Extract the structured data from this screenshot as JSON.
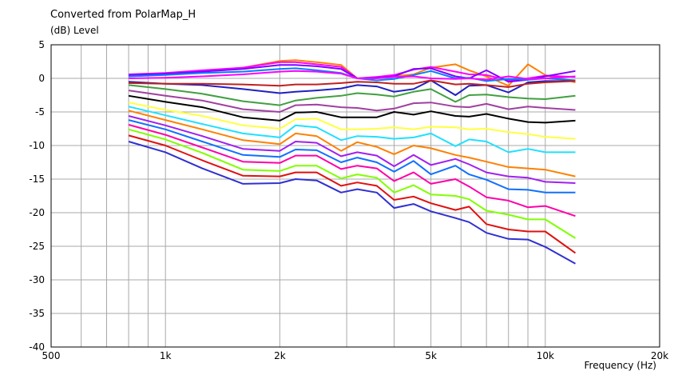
{
  "chart_data": {
    "type": "line",
    "title": "Converted from PolarMap_H",
    "ylabel": "(dB)  Level",
    "xlabel": "Frequency  (Hz)",
    "x_scale": "log",
    "xlim": [
      500,
      20000
    ],
    "ylim": [
      -40,
      5
    ],
    "grid": true,
    "x_tick_labels": [
      {
        "value": 500,
        "label": "500"
      },
      {
        "value": 1000,
        "label": "1k"
      },
      {
        "value": 2000,
        "label": "2k"
      },
      {
        "value": 5000,
        "label": "5k"
      },
      {
        "value": 10000,
        "label": "10k"
      },
      {
        "value": 20000,
        "label": "20k"
      }
    ],
    "y_tick_labels": [
      "5",
      "0",
      "-5",
      "-10",
      "-15",
      "-20",
      "-25",
      "-30",
      "-35",
      "-40"
    ],
    "x": [
      800,
      1000,
      1250,
      1600,
      2000,
      2200,
      2500,
      2900,
      3200,
      3600,
      4000,
      4500,
      5000,
      5800,
      6300,
      7000,
      8000,
      9000,
      10000,
      12000
    ],
    "series": [
      {
        "color": "#ff8000",
        "values": [
          0.3,
          0.6,
          1.0,
          1.6,
          2.6,
          2.7,
          2.4,
          2.0,
          0.0,
          0.2,
          0.3,
          0.6,
          1.6,
          2.1,
          1.2,
          0.3,
          -1.1,
          2.1,
          0.5,
          -0.6
        ]
      },
      {
        "color": "#ff00ff",
        "values": [
          0.6,
          0.8,
          1.2,
          1.6,
          2.4,
          2.4,
          2.1,
          1.7,
          0.0,
          0.2,
          0.5,
          1.3,
          1.7,
          1.0,
          0.6,
          0.5,
          -0.3,
          0.0,
          0.4,
          0.2
        ]
      },
      {
        "color": "#8000ff",
        "values": [
          0.5,
          0.7,
          1.0,
          1.4,
          2.0,
          2.0,
          1.8,
          1.4,
          0.0,
          0.1,
          0.3,
          1.4,
          1.5,
          0.3,
          0.0,
          1.2,
          -0.5,
          -0.2,
          0.3,
          1.1
        ]
      },
      {
        "color": "#0080ff",
        "values": [
          0.3,
          0.5,
          0.8,
          1.0,
          1.4,
          1.5,
          1.2,
          0.8,
          0.0,
          -0.3,
          -0.1,
          0.5,
          1.1,
          0.0,
          0.1,
          -0.4,
          -0.1,
          -0.2,
          0.0,
          -0.3
        ]
      },
      {
        "color": "#ff00ff",
        "values": [
          0.0,
          0.1,
          0.3,
          0.6,
          1.0,
          1.1,
          1.0,
          0.7,
          0.0,
          0.0,
          0.2,
          0.3,
          0.0,
          -0.1,
          0.0,
          -0.2,
          0.3,
          -0.1,
          0.0,
          0.3
        ]
      },
      {
        "color": "#2020c0",
        "values": [
          -0.5,
          -0.8,
          -1.0,
          -1.6,
          -2.2,
          -2.0,
          -1.8,
          -1.5,
          -1.0,
          -1.2,
          -2.0,
          -1.6,
          -0.3,
          -2.5,
          -1.1,
          -1.0,
          -2.1,
          -0.6,
          -0.4,
          -0.4
        ]
      },
      {
        "color": "#c02020",
        "values": [
          -0.7,
          -0.8,
          -0.8,
          -0.9,
          -1.1,
          -0.9,
          -0.9,
          -0.7,
          -0.5,
          -0.6,
          -0.8,
          -0.8,
          -0.3,
          -0.9,
          -0.8,
          -1.0,
          -1.3,
          -0.8,
          -0.6,
          -0.4
        ]
      },
      {
        "color": "#40a040",
        "values": [
          -1.0,
          -1.6,
          -2.3,
          -3.4,
          -4.0,
          -3.3,
          -2.9,
          -2.6,
          -2.2,
          -2.4,
          -2.7,
          -2.0,
          -1.6,
          -3.5,
          -2.5,
          -2.4,
          -2.8,
          -3.0,
          -3.1,
          -2.6
        ]
      },
      {
        "color": "#a040a0",
        "values": [
          -1.8,
          -2.6,
          -3.3,
          -4.6,
          -5.0,
          -4.0,
          -3.9,
          -4.3,
          -4.4,
          -4.8,
          -4.5,
          -3.7,
          -3.6,
          -4.2,
          -4.3,
          -3.8,
          -4.6,
          -4.2,
          -4.4,
          -4.7
        ]
      },
      {
        "color": "#000000",
        "values": [
          -2.6,
          -3.5,
          -4.3,
          -5.8,
          -6.3,
          -5.1,
          -5.0,
          -5.8,
          -5.8,
          -5.8,
          -5.0,
          -5.4,
          -4.9,
          -5.6,
          -5.7,
          -5.3,
          -6.0,
          -6.5,
          -6.6,
          -6.3
        ]
      },
      {
        "color": "#ffff40",
        "values": [
          -3.6,
          -4.7,
          -5.6,
          -7.0,
          -7.5,
          -6.1,
          -6.0,
          -7.6,
          -7.6,
          -7.5,
          -7.3,
          -7.6,
          -7.2,
          -7.3,
          -7.6,
          -7.5,
          -8.0,
          -8.3,
          -8.7,
          -9.0
        ]
      },
      {
        "color": "#20e0ff",
        "values": [
          -4.2,
          -5.5,
          -6.8,
          -8.2,
          -8.8,
          -7.0,
          -7.3,
          -9.2,
          -8.6,
          -8.7,
          -9.0,
          -8.8,
          -8.2,
          -10.1,
          -9.1,
          -9.4,
          -11.0,
          -10.5,
          -11.0,
          -11.0
        ]
      },
      {
        "color": "#ff8000",
        "values": [
          -4.8,
          -6.2,
          -7.6,
          -9.2,
          -9.8,
          -8.2,
          -8.6,
          -10.8,
          -9.5,
          -10.2,
          -11.3,
          -10.0,
          -10.4,
          -11.4,
          -11.8,
          -12.4,
          -13.2,
          -13.4,
          -13.6,
          -14.6
        ]
      },
      {
        "color": "#a020f0",
        "values": [
          -5.6,
          -7.0,
          -8.6,
          -10.5,
          -10.8,
          -9.4,
          -9.6,
          -11.6,
          -11.0,
          -11.5,
          -13.1,
          -11.4,
          -12.9,
          -12.0,
          -12.8,
          -14.0,
          -14.6,
          -14.8,
          -15.4,
          -15.6
        ]
      },
      {
        "color": "#1070ff",
        "values": [
          -6.2,
          -7.6,
          -9.4,
          -11.4,
          -11.7,
          -10.6,
          -10.7,
          -12.5,
          -11.8,
          -12.5,
          -13.9,
          -12.3,
          -14.3,
          -13.0,
          -14.3,
          -15.1,
          -16.5,
          -16.6,
          -17.0,
          -17.0
        ]
      },
      {
        "color": "#ff00aa",
        "values": [
          -6.9,
          -8.4,
          -10.3,
          -12.4,
          -12.6,
          -11.5,
          -11.5,
          -13.5,
          -13.0,
          -13.4,
          -15.3,
          -14.0,
          -15.7,
          -15.0,
          -16.1,
          -17.7,
          -18.2,
          -19.2,
          -19.0,
          -20.5
        ]
      },
      {
        "color": "#80ff00",
        "values": [
          -7.6,
          -9.1,
          -11.1,
          -13.6,
          -13.8,
          -13.0,
          -13.0,
          -14.9,
          -14.3,
          -14.8,
          -17.0,
          -15.9,
          -17.3,
          -17.5,
          -18.0,
          -19.7,
          -20.3,
          -21.0,
          -21.0,
          -23.8
        ]
      },
      {
        "color": "#e01010",
        "values": [
          -8.5,
          -10.0,
          -12.2,
          -14.5,
          -14.6,
          -14.0,
          -14.0,
          -16.0,
          -15.5,
          -16.0,
          -18.1,
          -17.6,
          -18.6,
          -19.6,
          -19.1,
          -21.7,
          -22.5,
          -22.8,
          -22.8,
          -26.0
        ]
      },
      {
        "color": "#3030d0",
        "values": [
          -9.4,
          -11.0,
          -13.4,
          -15.7,
          -15.6,
          -15.0,
          -15.2,
          -17.0,
          -16.5,
          -17.0,
          -19.3,
          -18.7,
          -19.8,
          -20.8,
          -21.4,
          -23.0,
          -23.9,
          -24.0,
          -25.1,
          -27.6
        ]
      }
    ]
  }
}
